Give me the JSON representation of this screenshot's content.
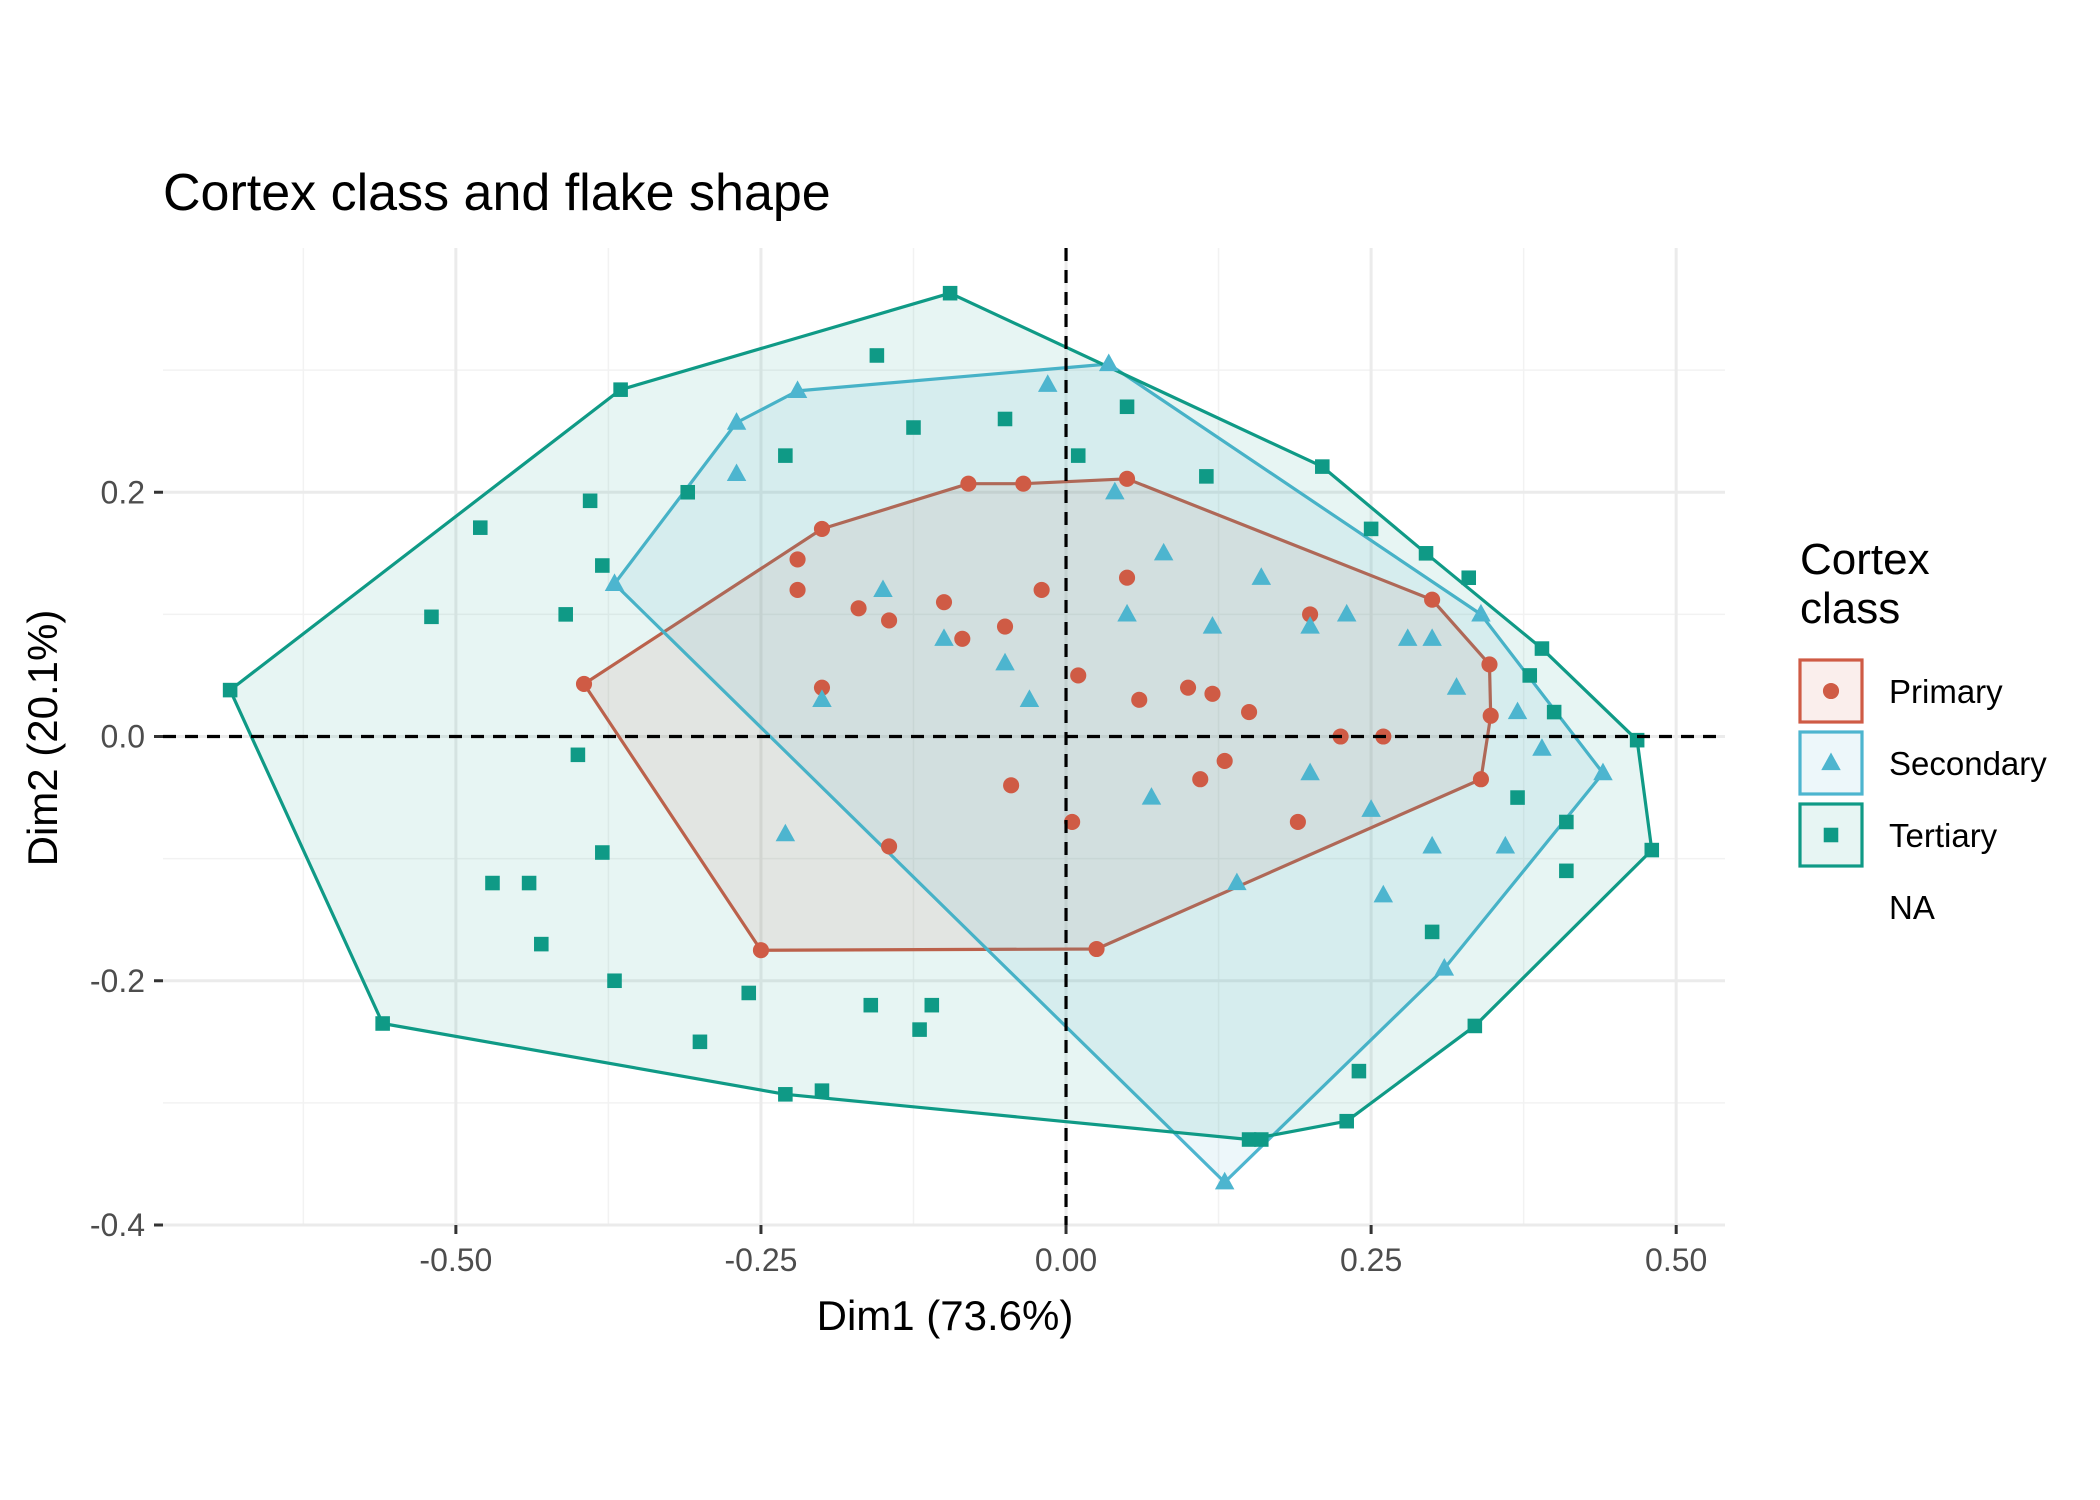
{
  "chart_data": {
    "type": "scatter",
    "title": "Cortex class and flake shape",
    "xlabel": "Dim1 (73.6%)",
    "ylabel": "Dim2 (20.1%)",
    "xlim": [
      -0.74,
      0.54
    ],
    "ylim": [
      -0.4,
      0.4
    ],
    "x_ticks": [
      -0.5,
      -0.25,
      0.0,
      0.25,
      0.5
    ],
    "x_tick_labels": [
      "-0.50",
      "-0.25",
      "0.00",
      "0.25",
      "0.50"
    ],
    "y_ticks": [
      -0.4,
      -0.2,
      0.0,
      0.2
    ],
    "y_tick_labels": [
      "-0.4",
      "-0.2",
      "0.0",
      "0.2"
    ],
    "grid": true,
    "reference_lines": {
      "x": 0,
      "y": 0,
      "style": "dashed"
    },
    "legend": {
      "title": "Cortex\nclass",
      "title_lines": [
        "Cortex",
        "class"
      ],
      "placement": "right",
      "entries": [
        "Primary",
        "Secondary",
        "Tertiary",
        "NA"
      ]
    },
    "colors": {
      "Primary": "#cf5b45",
      "Secondary": "#4db5cf",
      "Tertiary": "#0f9a86"
    },
    "series": [
      {
        "name": "Primary",
        "marker": "circle",
        "hull": [
          [
            -0.395,
            0.043
          ],
          [
            -0.25,
            -0.175
          ],
          [
            0.025,
            -0.174
          ],
          [
            0.34,
            -0.035
          ],
          [
            0.348,
            0.017
          ],
          [
            0.347,
            0.059
          ],
          [
            0.3,
            0.112
          ],
          [
            0.05,
            0.211
          ],
          [
            -0.035,
            0.207
          ],
          [
            -0.08,
            0.207
          ],
          [
            -0.2,
            0.17
          ]
        ],
        "points": [
          [
            -0.395,
            0.043
          ],
          [
            -0.25,
            -0.175
          ],
          [
            0.025,
            -0.174
          ],
          [
            0.34,
            -0.035
          ],
          [
            0.348,
            0.017
          ],
          [
            0.347,
            0.059
          ],
          [
            0.3,
            0.112
          ],
          [
            0.05,
            0.211
          ],
          [
            -0.035,
            0.207
          ],
          [
            -0.08,
            0.207
          ],
          [
            -0.2,
            0.17
          ],
          [
            -0.22,
            0.145
          ],
          [
            -0.17,
            0.105
          ],
          [
            -0.145,
            0.095
          ],
          [
            -0.1,
            0.11
          ],
          [
            -0.085,
            0.08
          ],
          [
            -0.05,
            0.09
          ],
          [
            -0.02,
            0.12
          ],
          [
            0.01,
            0.05
          ],
          [
            0.06,
            0.03
          ],
          [
            0.1,
            0.04
          ],
          [
            0.12,
            0.035
          ],
          [
            0.15,
            0.02
          ],
          [
            0.13,
            -0.02
          ],
          [
            0.11,
            -0.035
          ],
          [
            0.19,
            -0.07
          ],
          [
            0.26,
            0.0
          ],
          [
            -0.145,
            -0.09
          ],
          [
            -0.045,
            -0.04
          ],
          [
            0.005,
            -0.07
          ],
          [
            0.05,
            0.13
          ],
          [
            -0.2,
            0.04
          ],
          [
            0.2,
            0.1
          ],
          [
            0.225,
            0.0
          ],
          [
            -0.22,
            0.12
          ]
        ]
      },
      {
        "name": "Secondary",
        "marker": "triangle",
        "hull": [
          [
            -0.37,
            0.125
          ],
          [
            0.13,
            -0.365
          ],
          [
            0.31,
            -0.19
          ],
          [
            0.44,
            -0.03
          ],
          [
            0.34,
            0.1
          ],
          [
            0.035,
            0.305
          ],
          [
            -0.22,
            0.283
          ],
          [
            -0.27,
            0.257
          ]
        ],
        "points": [
          [
            -0.37,
            0.125
          ],
          [
            0.13,
            -0.365
          ],
          [
            0.31,
            -0.19
          ],
          [
            0.44,
            -0.03
          ],
          [
            0.34,
            0.1
          ],
          [
            0.035,
            0.305
          ],
          [
            -0.22,
            0.283
          ],
          [
            -0.27,
            0.257
          ],
          [
            -0.015,
            0.288
          ],
          [
            -0.27,
            0.215
          ],
          [
            -0.2,
            0.03
          ],
          [
            -0.15,
            0.12
          ],
          [
            -0.1,
            0.08
          ],
          [
            -0.05,
            0.06
          ],
          [
            0.04,
            0.2
          ],
          [
            0.08,
            0.15
          ],
          [
            0.16,
            0.13
          ],
          [
            0.2,
            0.09
          ],
          [
            0.23,
            0.1
          ],
          [
            0.28,
            0.08
          ],
          [
            0.3,
            0.08
          ],
          [
            0.32,
            0.04
          ],
          [
            0.37,
            0.02
          ],
          [
            0.39,
            -0.01
          ],
          [
            0.25,
            -0.06
          ],
          [
            0.26,
            -0.13
          ],
          [
            0.3,
            -0.09
          ],
          [
            0.36,
            -0.09
          ],
          [
            0.07,
            -0.05
          ],
          [
            -0.23,
            -0.08
          ],
          [
            0.12,
            0.09
          ],
          [
            0.05,
            0.1
          ],
          [
            -0.03,
            0.03
          ],
          [
            0.14,
            -0.12
          ],
          [
            0.2,
            -0.03
          ]
        ]
      },
      {
        "name": "Tertiary",
        "marker": "square",
        "hull": [
          [
            -0.685,
            0.038
          ],
          [
            -0.56,
            -0.235
          ],
          [
            -0.23,
            -0.293
          ],
          [
            0.15,
            -0.33
          ],
          [
            0.23,
            -0.315
          ],
          [
            0.335,
            -0.237
          ],
          [
            0.48,
            -0.093
          ],
          [
            0.468,
            -0.003
          ],
          [
            0.39,
            0.072
          ],
          [
            0.295,
            0.15
          ],
          [
            0.21,
            0.221
          ],
          [
            -0.095,
            0.363
          ],
          [
            -0.365,
            0.284
          ]
        ],
        "points": [
          [
            -0.685,
            0.038
          ],
          [
            -0.56,
            -0.235
          ],
          [
            -0.23,
            -0.293
          ],
          [
            0.15,
            -0.33
          ],
          [
            0.23,
            -0.315
          ],
          [
            0.335,
            -0.237
          ],
          [
            0.48,
            -0.093
          ],
          [
            0.468,
            -0.003
          ],
          [
            0.39,
            0.072
          ],
          [
            0.295,
            0.15
          ],
          [
            0.21,
            0.221
          ],
          [
            -0.095,
            0.363
          ],
          [
            -0.365,
            0.284
          ],
          [
            -0.155,
            0.312
          ],
          [
            -0.125,
            0.253
          ],
          [
            0.115,
            0.213
          ],
          [
            -0.52,
            0.098
          ],
          [
            -0.48,
            0.171
          ],
          [
            -0.4,
            -0.015
          ],
          [
            -0.38,
            -0.095
          ],
          [
            -0.44,
            -0.12
          ],
          [
            -0.47,
            -0.12
          ],
          [
            -0.43,
            -0.17
          ],
          [
            -0.37,
            -0.2
          ],
          [
            -0.3,
            -0.25
          ],
          [
            -0.2,
            -0.29
          ],
          [
            -0.26,
            -0.21
          ],
          [
            -0.16,
            -0.22
          ],
          [
            -0.12,
            -0.24
          ],
          [
            -0.11,
            -0.22
          ],
          [
            0.16,
            -0.33
          ],
          [
            0.24,
            -0.274
          ],
          [
            0.3,
            -0.16
          ],
          [
            0.37,
            -0.05
          ],
          [
            0.41,
            -0.07
          ],
          [
            0.41,
            -0.11
          ],
          [
            0.4,
            0.02
          ],
          [
            0.38,
            0.05
          ],
          [
            0.33,
            0.13
          ],
          [
            0.25,
            0.17
          ],
          [
            0.01,
            0.23
          ],
          [
            -0.05,
            0.26
          ],
          [
            0.05,
            0.27
          ],
          [
            -0.23,
            0.23
          ],
          [
            -0.31,
            0.2
          ],
          [
            -0.39,
            0.193
          ],
          [
            -0.41,
            0.1
          ],
          [
            -0.38,
            0.14
          ]
        ]
      }
    ]
  }
}
